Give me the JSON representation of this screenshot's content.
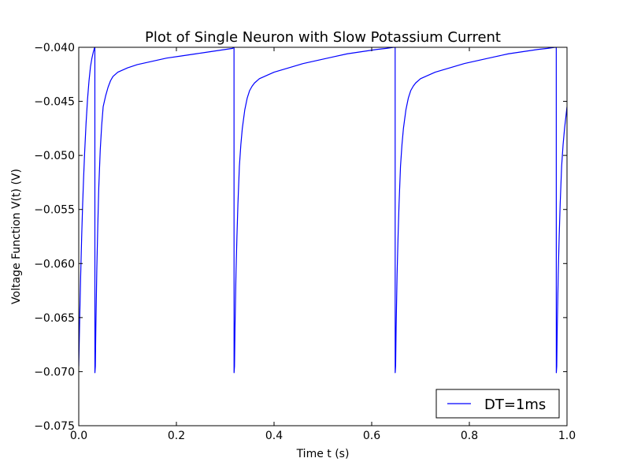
{
  "chart_data": {
    "type": "line",
    "title": "Plot of Single Neuron with Slow Potassium Current",
    "xlabel": "Time t (s)",
    "ylabel": "Voltage Function V(t) (V)",
    "xlim": [
      0.0,
      1.0
    ],
    "ylim": [
      -0.075,
      -0.04
    ],
    "xticks": [
      0.0,
      0.2,
      0.4,
      0.6,
      0.8,
      1.0
    ],
    "xtick_labels": [
      "0.0",
      "0.2",
      "0.4",
      "0.6",
      "0.8",
      "1.0"
    ],
    "yticks": [
      -0.075,
      -0.07,
      -0.065,
      -0.06,
      -0.055,
      -0.05,
      -0.045,
      -0.04
    ],
    "ytick_labels": [
      "−0.075",
      "−0.070",
      "−0.065",
      "−0.060",
      "−0.055",
      "−0.050",
      "−0.045",
      "−0.040"
    ],
    "grid": false,
    "legend_position": "lower-right",
    "series": [
      {
        "name": "DT=1ms",
        "color": "#0000ff",
        "x": [
          0.0,
          0.002,
          0.004,
          0.006,
          0.008,
          0.01,
          0.012,
          0.015,
          0.018,
          0.021,
          0.024,
          0.027,
          0.03,
          0.032,
          0.033,
          0.0331,
          0.034,
          0.035,
          0.037,
          0.039,
          0.041,
          0.044,
          0.047,
          0.05,
          0.055,
          0.06,
          0.065,
          0.07,
          0.08,
          0.09,
          0.1,
          0.12,
          0.15,
          0.18,
          0.21,
          0.24,
          0.27,
          0.3,
          0.315,
          0.318,
          0.3181,
          0.319,
          0.32,
          0.322,
          0.324,
          0.326,
          0.329,
          0.332,
          0.335,
          0.34,
          0.345,
          0.35,
          0.355,
          0.36,
          0.37,
          0.38,
          0.4,
          0.43,
          0.46,
          0.49,
          0.52,
          0.55,
          0.58,
          0.61,
          0.63,
          0.645,
          0.648,
          0.6481,
          0.649,
          0.65,
          0.652,
          0.654,
          0.656,
          0.659,
          0.662,
          0.665,
          0.67,
          0.675,
          0.68,
          0.685,
          0.69,
          0.7,
          0.71,
          0.73,
          0.76,
          0.79,
          0.82,
          0.85,
          0.88,
          0.91,
          0.94,
          0.96,
          0.975,
          0.978,
          0.9781,
          0.979,
          0.98,
          0.982,
          0.984,
          0.986,
          0.989,
          0.992,
          0.995,
          1.0
        ],
        "y": [
          -0.0695,
          -0.065,
          -0.061,
          -0.0575,
          -0.0545,
          -0.052,
          -0.0498,
          -0.047,
          -0.0448,
          -0.0431,
          -0.0418,
          -0.041,
          -0.0404,
          -0.0401,
          -0.04,
          -0.0701,
          -0.0695,
          -0.066,
          -0.0605,
          -0.0565,
          -0.053,
          -0.0495,
          -0.0472,
          -0.0455,
          -0.0445,
          -0.0437,
          -0.0431,
          -0.0427,
          -0.0423,
          -0.0421,
          -0.0419,
          -0.0416,
          -0.0413,
          -0.041,
          -0.0408,
          -0.0406,
          -0.0404,
          -0.0402,
          -0.0401,
          -0.04,
          -0.0701,
          -0.0695,
          -0.066,
          -0.061,
          -0.0575,
          -0.0545,
          -0.051,
          -0.049,
          -0.0475,
          -0.0458,
          -0.0447,
          -0.044,
          -0.0436,
          -0.0433,
          -0.0429,
          -0.0427,
          -0.0423,
          -0.0419,
          -0.0415,
          -0.0412,
          -0.0409,
          -0.0406,
          -0.0404,
          -0.0402,
          -0.0401,
          -0.04,
          -0.04,
          -0.0701,
          -0.0695,
          -0.066,
          -0.061,
          -0.0575,
          -0.0545,
          -0.051,
          -0.049,
          -0.0475,
          -0.0458,
          -0.0447,
          -0.044,
          -0.0436,
          -0.0433,
          -0.0429,
          -0.0427,
          -0.0423,
          -0.0419,
          -0.0415,
          -0.0412,
          -0.0409,
          -0.0406,
          -0.0404,
          -0.0402,
          -0.0401,
          -0.04,
          -0.04,
          -0.0701,
          -0.0695,
          -0.066,
          -0.061,
          -0.0575,
          -0.0545,
          -0.051,
          -0.049,
          -0.0475,
          -0.0455
        ]
      }
    ]
  }
}
